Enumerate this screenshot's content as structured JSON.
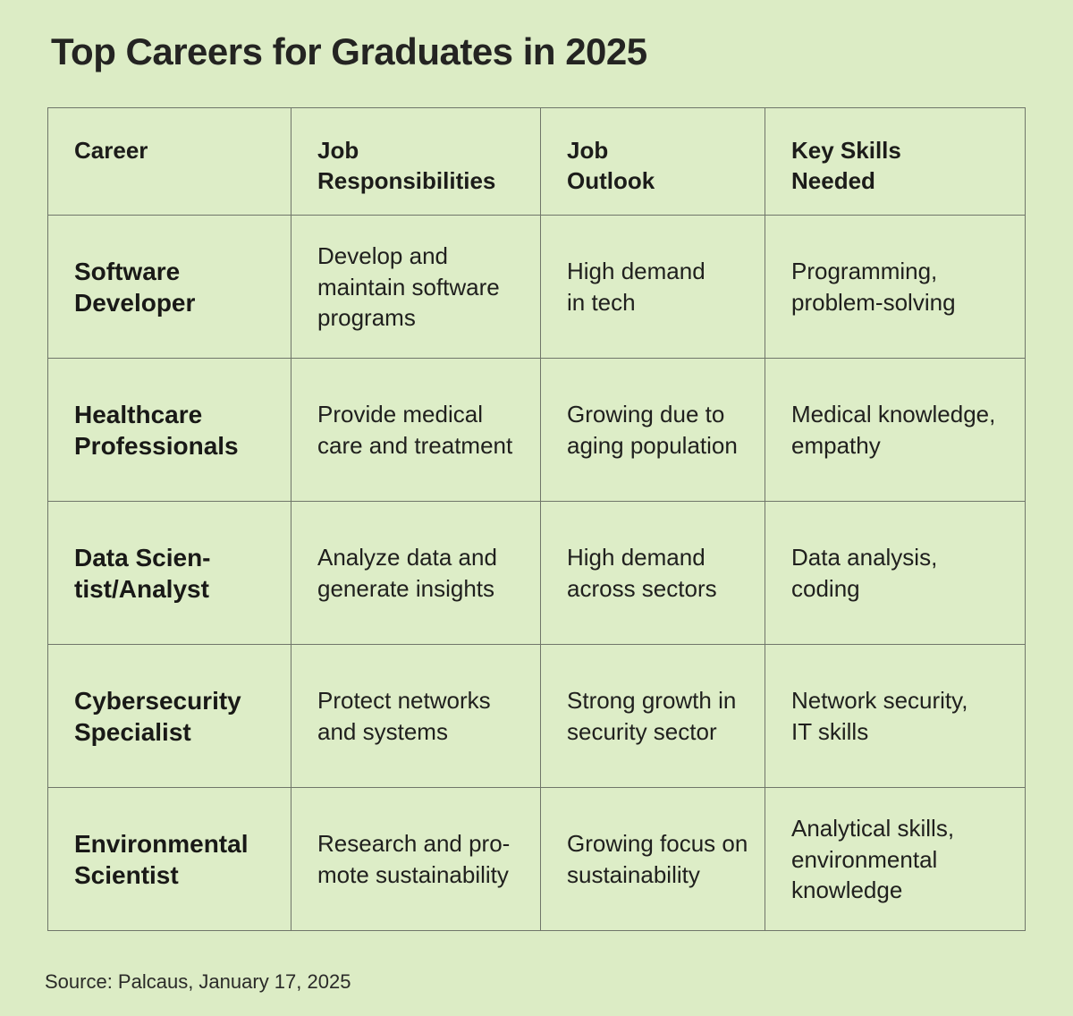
{
  "page": {
    "title": "Top Careers for Graduates in 2025",
    "source": "Source: Palcaus, January 17, 2025"
  },
  "colors": {
    "background": "#dcecc5",
    "cell_background": "#ddedc7",
    "border": "#70766a",
    "text": "#1d1d1b"
  },
  "table": {
    "headers": [
      "Career",
      "Job\nResponsibilities",
      "Job\nOutlook",
      "Key Skills\nNeeded"
    ],
    "rows": [
      {
        "career": "Software\nDeveloper",
        "responsibilities": "Develop and\nmaintain software\nprograms",
        "outlook": "High demand\nin tech",
        "skills": "Programming,\nproblem-solving"
      },
      {
        "career": "Healthcare\nProfessionals",
        "responsibilities": "Provide medical\ncare and treatment",
        "outlook": "Growing due to\naging population",
        "skills": "Medical knowledge,\nempathy"
      },
      {
        "career": "Data Scien-\ntist/Analyst",
        "responsibilities": "Analyze data and\ngenerate insights",
        "outlook": "High demand\nacross sectors",
        "skills": "Data analysis,\ncoding"
      },
      {
        "career": "Cybersecurity\nSpecialist",
        "responsibilities": "Protect networks\nand systems",
        "outlook": "Strong growth in\nsecurity sector",
        "skills": "Network security,\nIT skills"
      },
      {
        "career": "Environmental\nScientist",
        "responsibilities": "Research and pro-\nmote sustainability",
        "outlook": "Growing focus on\nsustainability",
        "skills": "Analytical skills,\nenvironmental\nknowledge"
      }
    ]
  },
  "chart_data": {
    "type": "table",
    "title": "Top Careers for Graduates in 2025",
    "columns": [
      "Career",
      "Job Responsibilities",
      "Job Outlook",
      "Key Skills Needed"
    ],
    "rows": [
      [
        "Software Developer",
        "Develop and maintain software programs",
        "High demand in tech",
        "Programming, problem-solving"
      ],
      [
        "Healthcare Professionals",
        "Provide medical care and treatment",
        "Growing due to aging population",
        "Medical knowledge, empathy"
      ],
      [
        "Data Scientist/Analyst",
        "Analyze data and generate insights",
        "High demand across sectors",
        "Data analysis, coding"
      ],
      [
        "Cybersecurity Specialist",
        "Protect networks and systems",
        "Strong growth in security sector",
        "Network security, IT skills"
      ],
      [
        "Environmental Scientist",
        "Research and promote sustainability",
        "Growing focus on sustainability",
        "Analytical skills, environmental knowledge"
      ]
    ],
    "source": "Source: Palcaus, January 17, 2025"
  }
}
